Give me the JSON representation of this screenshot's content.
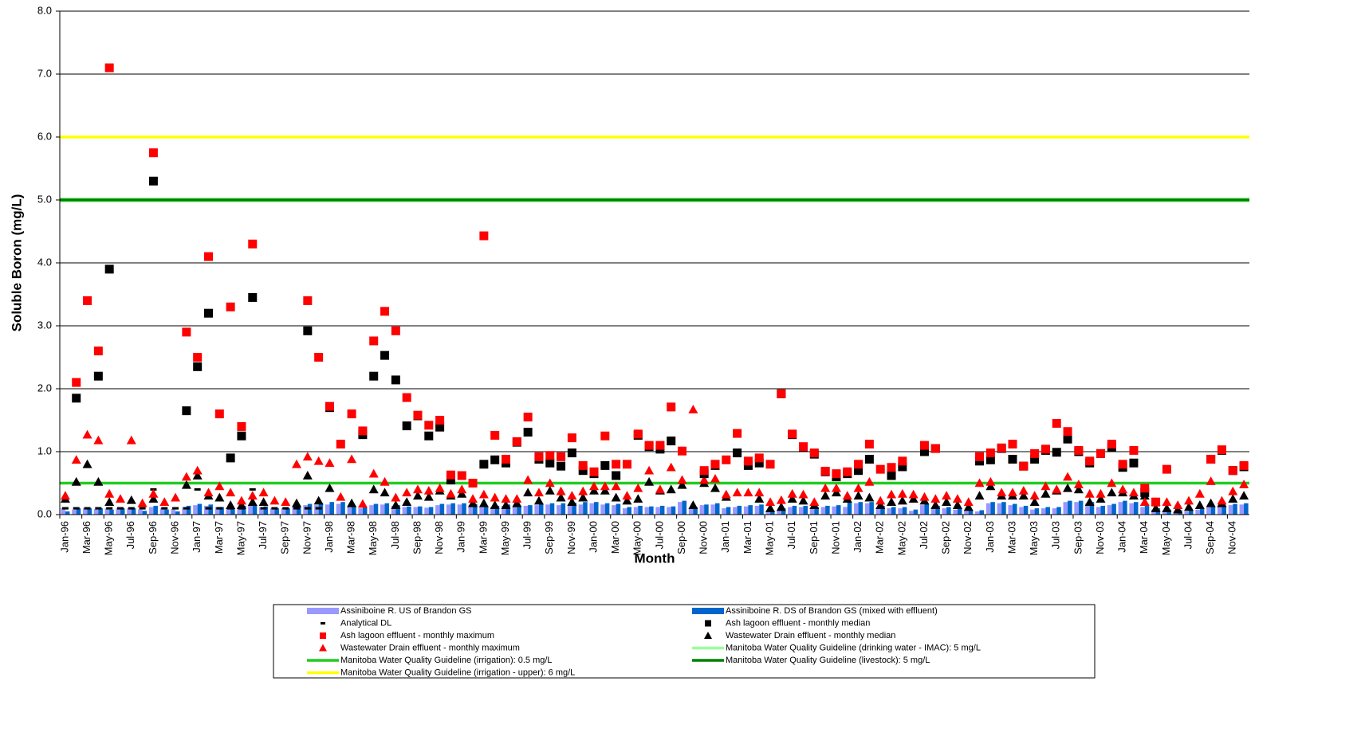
{
  "chart_data": {
    "type": "combo",
    "y_label": "Soluble Boron (mg/L)",
    "x_label": "Month",
    "ylim": [
      0,
      8
    ],
    "yticks": [
      {
        "value": 0,
        "label": "0.0"
      },
      {
        "value": 1,
        "label": "1.0"
      },
      {
        "value": 2,
        "label": "2.0"
      },
      {
        "value": 3,
        "label": "3.0"
      },
      {
        "value": 4,
        "label": "4.0"
      },
      {
        "value": 5,
        "label": "5.0"
      },
      {
        "value": 6,
        "label": "6.0"
      },
      {
        "value": 7,
        "label": "7.0"
      },
      {
        "value": 8,
        "label": "8.0"
      }
    ],
    "grid": true,
    "categories": [
      "Jan-96",
      null,
      "Mar-96",
      null,
      "May-96",
      null,
      "Jul-96",
      null,
      "Sep-96",
      null,
      "Nov-96",
      null,
      "Jan-97",
      null,
      "Mar-97",
      null,
      "May-97",
      null,
      "Jul-97",
      null,
      "Sep-97",
      null,
      "Nov-97",
      null,
      "Jan-98",
      null,
      "Mar-98",
      null,
      "May-98",
      null,
      "Jul-98",
      null,
      "Sep-98",
      null,
      "Nov-98",
      null,
      "Jan-99",
      null,
      "Mar-99",
      null,
      "May-99",
      null,
      "Jul-99",
      null,
      "Sep-99",
      null,
      "Nov-99",
      null,
      "Jan-00",
      null,
      "Mar-00",
      null,
      "May-00",
      null,
      "Jul-00",
      null,
      "Sep-00",
      null,
      "Nov-00",
      null,
      "Jan-01",
      null,
      "Mar-01",
      null,
      "May-01",
      null,
      "Jul-01",
      null,
      "Sep-01",
      null,
      "Nov-01",
      null,
      "Jan-02",
      null,
      "Mar-02",
      null,
      "May-02",
      null,
      "Jul-02",
      null,
      "Sep-02",
      null,
      "Nov-02",
      null,
      "Jan-03",
      null,
      "Mar-03",
      null,
      "May-03",
      null,
      "Jul-03",
      null,
      "Sep-03",
      null,
      "Nov-03",
      null,
      "Jan-04",
      null,
      "Mar-04",
      null,
      "May-04",
      null,
      "Jul-04",
      null,
      "Sep-04",
      null,
      "Nov-04",
      null
    ],
    "series": [
      {
        "name": "Assiniboine R. US of Brandon GS",
        "type": "bar",
        "color": "#9999ff",
        "values": [
          0.1,
          0.08,
          0.1,
          0.09,
          0.1,
          0.1,
          0.1,
          0.08,
          0.12,
          0.1,
          0.09,
          0.12,
          0.15,
          0.14,
          0.12,
          0.1,
          0.12,
          0.14,
          0.12,
          0.1,
          0.1,
          0.12,
          0.15,
          0.15,
          0.16,
          0.17,
          0.12,
          0.1,
          0.15,
          0.16,
          0.14,
          0.12,
          0.12,
          0.11,
          0.15,
          0.16,
          0.16,
          0.15,
          0.12,
          0.12,
          0.14,
          0.12,
          0.14,
          0.15,
          0.16,
          0.15,
          0.17,
          0.16,
          0.18,
          0.16,
          0.15,
          0.1,
          0.12,
          0.12,
          0.12,
          0.12,
          0.2,
          0.1,
          0.15,
          0.16,
          0.1,
          0.12,
          0.13,
          0.14,
          0.05,
          0.08,
          0.12,
          0.12,
          0.1,
          0.12,
          0.13,
          0.12,
          0.18,
          0.18,
          0.12,
          0.1,
          0.1,
          0.06,
          0.15,
          0.12,
          0.1,
          0.08,
          0.06,
          0.05,
          0.18,
          0.18,
          0.15,
          0.12,
          0.08,
          0.1,
          0.1,
          0.2,
          0.2,
          0.18,
          0.12,
          0.15,
          0.2,
          0.18,
          0.12,
          0.08,
          0.06,
          0.05,
          0.05,
          0.08,
          0.12,
          0.12,
          0.15,
          0.16
        ]
      },
      {
        "name": "Assiniboine R. DS of Brandon GS (mixed with effluent)",
        "type": "bar",
        "color": "#0066cc",
        "values": [
          0.05,
          0.1,
          0.1,
          0.1,
          0.08,
          0.1,
          0.1,
          0.06,
          0.14,
          0.08,
          0.05,
          0.14,
          0.17,
          0.16,
          0.12,
          0.1,
          0.14,
          0.16,
          0.13,
          0.1,
          0.1,
          0.13,
          0.17,
          0.18,
          0.2,
          0.2,
          0.14,
          0.12,
          0.17,
          0.18,
          0.15,
          0.13,
          0.13,
          0.12,
          0.17,
          0.18,
          0.18,
          0.17,
          0.13,
          0.14,
          0.16,
          0.14,
          0.15,
          0.17,
          0.18,
          0.18,
          0.19,
          0.2,
          0.2,
          0.18,
          0.17,
          0.12,
          0.14,
          0.13,
          0.14,
          0.13,
          0.22,
          0.12,
          0.16,
          0.18,
          0.12,
          0.14,
          0.15,
          0.16,
          0.06,
          0.1,
          0.14,
          0.14,
          0.12,
          0.14,
          0.15,
          0.2,
          0.2,
          0.2,
          0.14,
          0.12,
          0.12,
          0.08,
          0.17,
          0.14,
          0.12,
          0.1,
          0.08,
          0.07,
          0.2,
          0.2,
          0.17,
          0.14,
          0.1,
          0.12,
          0.12,
          0.22,
          0.22,
          0.2,
          0.14,
          0.17,
          0.22,
          0.2,
          0.14,
          0.1,
          0.08,
          0.07,
          0.07,
          0.1,
          0.14,
          0.14,
          0.17,
          0.18
        ]
      },
      {
        "name": "Analytical DL",
        "type": "dash",
        "color": "#000000",
        "values": [
          0.1,
          0.1,
          0.1,
          0.1,
          0.1,
          0.1,
          0.1,
          0.1,
          0.4,
          0.1,
          0.1,
          0.1,
          0.4,
          0.1,
          0.1,
          0.1,
          0.1,
          0.4,
          0.1,
          0.1,
          0.1,
          0.1,
          0.1,
          0.1,
          null,
          null,
          null,
          null,
          null,
          null,
          null,
          null,
          null,
          null,
          null,
          null,
          null,
          null,
          null,
          null,
          null,
          null,
          null,
          null,
          null,
          null,
          null,
          null,
          null,
          null,
          null,
          null,
          null,
          null,
          null,
          null,
          null,
          null,
          null,
          null,
          null,
          null,
          null,
          null,
          null,
          null,
          null,
          null,
          null,
          null,
          null,
          null,
          null,
          null,
          null,
          null,
          null,
          null,
          null,
          null,
          null,
          null,
          null,
          null,
          null,
          null,
          null,
          null,
          null,
          null,
          null,
          null,
          null,
          null,
          null,
          null,
          null,
          null,
          null,
          null,
          null,
          null,
          null,
          null,
          null,
          null,
          null,
          null
        ]
      },
      {
        "name": "Ash lagoon effluent - monthly median",
        "type": "square",
        "color": "#000000",
        "values": [
          null,
          1.85,
          null,
          2.2,
          3.9,
          null,
          null,
          null,
          5.3,
          null,
          null,
          1.65,
          2.35,
          3.2,
          null,
          0.9,
          1.25,
          3.45,
          null,
          null,
          null,
          null,
          2.92,
          null,
          1.7,
          null,
          null,
          1.27,
          2.2,
          2.53,
          2.14,
          1.41,
          1.57,
          1.25,
          1.39,
          0.55,
          null,
          null,
          0.8,
          0.87,
          0.82,
          1.15,
          1.31,
          0.88,
          0.82,
          0.77,
          0.98,
          0.7,
          0.65,
          0.78,
          0.62,
          null,
          1.26,
          1.08,
          1.04,
          1.17,
          null,
          null,
          0.65,
          0.78,
          null,
          0.98,
          0.78,
          0.82,
          null,
          1.92,
          1.27,
          1.07,
          0.96,
          0.68,
          0.6,
          0.65,
          0.7,
          0.88,
          null,
          0.62,
          0.76,
          null,
          1.0,
          1.05,
          null,
          null,
          null,
          0.85,
          0.87,
          1.05,
          0.88,
          0.77,
          0.88,
          1.02,
          0.99,
          1.2,
          1.0,
          0.82,
          0.97,
          1.07,
          0.75,
          0.82,
          0.35,
          null,
          null,
          null,
          null,
          null,
          0.88,
          1.02,
          0.7,
          0.76
        ]
      },
      {
        "name": "Ash lagoon effluent - monthly maximum",
        "type": "square",
        "color": "#ff0000",
        "values": [
          null,
          2.1,
          3.4,
          2.6,
          7.1,
          null,
          null,
          null,
          5.75,
          null,
          null,
          2.9,
          2.5,
          4.1,
          1.6,
          3.3,
          1.4,
          4.3,
          null,
          null,
          null,
          null,
          3.4,
          2.5,
          1.72,
          1.12,
          1.6,
          1.33,
          2.76,
          3.23,
          2.92,
          1.86,
          1.58,
          1.42,
          1.5,
          0.63,
          0.62,
          0.5,
          4.43,
          1.26,
          0.88,
          1.16,
          1.55,
          0.92,
          0.94,
          0.92,
          1.22,
          0.78,
          0.68,
          1.25,
          0.8,
          0.8,
          1.28,
          1.1,
          1.1,
          1.71,
          1.01,
          null,
          0.7,
          0.8,
          0.87,
          1.29,
          0.85,
          0.9,
          0.8,
          1.92,
          1.28,
          1.08,
          0.98,
          0.69,
          0.65,
          0.68,
          0.8,
          1.12,
          0.72,
          0.75,
          0.85,
          null,
          1.1,
          1.05,
          null,
          null,
          null,
          0.92,
          0.98,
          1.06,
          1.12,
          0.77,
          0.97,
          1.04,
          1.45,
          1.32,
          1.02,
          0.85,
          0.97,
          1.12,
          0.8,
          1.02,
          0.42,
          0.2,
          0.72,
          null,
          null,
          null,
          0.88,
          1.03,
          0.7,
          0.78
        ]
      },
      {
        "name": "Wastewater Drain effluent - monthly median",
        "type": "triangle",
        "color": "#000000",
        "values": [
          0.25,
          0.52,
          0.8,
          0.52,
          0.2,
          null,
          0.23,
          null,
          0.25,
          null,
          null,
          0.47,
          0.62,
          0.3,
          0.27,
          0.15,
          0.15,
          0.2,
          0.2,
          null,
          null,
          0.18,
          0.62,
          0.22,
          0.42,
          null,
          0.18,
          null,
          0.4,
          0.35,
          0.15,
          0.2,
          0.3,
          0.28,
          0.38,
          0.3,
          0.33,
          0.18,
          0.18,
          0.15,
          0.15,
          0.18,
          0.35,
          0.22,
          0.38,
          0.27,
          0.2,
          0.27,
          0.38,
          0.38,
          0.27,
          0.22,
          0.25,
          0.52,
          0.38,
          0.4,
          0.47,
          0.15,
          0.5,
          0.42,
          0.28,
          null,
          null,
          0.25,
          0.1,
          0.12,
          0.25,
          0.22,
          0.15,
          0.3,
          0.35,
          0.25,
          0.3,
          0.27,
          0.15,
          0.2,
          0.22,
          0.25,
          0.22,
          0.15,
          0.2,
          0.15,
          0.12,
          0.3,
          0.45,
          0.3,
          0.3,
          0.3,
          0.2,
          0.33,
          0.38,
          0.42,
          0.4,
          0.2,
          0.25,
          0.35,
          0.35,
          0.3,
          0.3,
          0.1,
          0.1,
          0.08,
          0.12,
          0.15,
          0.18,
          0.18,
          0.25,
          0.3
        ]
      },
      {
        "name": "Wastewater Drain effluent - monthly maximum",
        "type": "triangle",
        "color": "#ff0000",
        "values": [
          0.3,
          0.87,
          1.27,
          1.18,
          0.33,
          0.25,
          1.18,
          0.18,
          0.33,
          0.2,
          0.27,
          0.6,
          0.7,
          0.35,
          0.45,
          0.35,
          0.22,
          0.3,
          0.35,
          0.22,
          0.2,
          0.8,
          0.92,
          0.85,
          0.82,
          0.28,
          0.88,
          0.17,
          0.65,
          0.52,
          0.27,
          0.35,
          0.4,
          0.38,
          0.42,
          0.33,
          0.4,
          0.25,
          0.32,
          0.27,
          0.25,
          0.25,
          0.55,
          0.35,
          0.5,
          0.37,
          0.3,
          0.37,
          0.45,
          0.45,
          0.45,
          0.3,
          0.42,
          0.7,
          0.4,
          0.75,
          0.55,
          1.67,
          0.55,
          0.57,
          0.32,
          0.35,
          0.35,
          0.35,
          0.2,
          0.23,
          0.33,
          0.32,
          0.2,
          0.42,
          0.42,
          0.3,
          0.42,
          0.52,
          0.22,
          0.32,
          0.33,
          0.32,
          0.28,
          0.25,
          0.3,
          0.25,
          0.2,
          0.5,
          0.52,
          0.35,
          0.35,
          0.38,
          0.3,
          0.45,
          0.4,
          0.6,
          0.48,
          0.33,
          0.33,
          0.5,
          0.4,
          0.35,
          0.2,
          0.2,
          0.2,
          0.15,
          0.22,
          0.33,
          0.53,
          0.22,
          0.37,
          0.48
        ]
      },
      {
        "name": "Manitoba Water Quality Guideline (drinking water - IMAC): 5 mg/L",
        "type": "hline",
        "color": "#99ff99",
        "value": 5
      },
      {
        "name": "Manitoba Water Quality Guideline (irrigation): 0.5 mg/L",
        "type": "hline",
        "color": "#22cc22",
        "value": 0.5
      },
      {
        "name": "Manitoba Water Quality Guideline (livestock): 5 mg/L",
        "type": "hline",
        "color": "#008000",
        "value": 5
      },
      {
        "name": "Manitoba Water Quality Guideline (irrigation - upper): 6 mg/L",
        "type": "hline",
        "color": "#ffff00",
        "value": 6
      }
    ]
  }
}
